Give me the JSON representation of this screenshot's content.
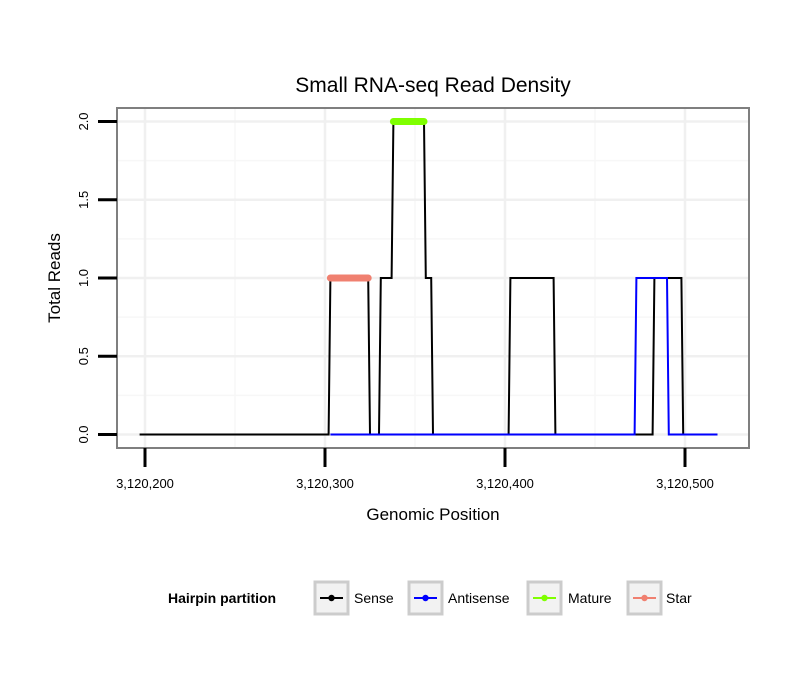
{
  "chart_data": {
    "type": "line",
    "title": "Small RNA-seq Read Density",
    "xlabel": "Genomic Position",
    "ylabel": "Total Reads",
    "xlim": [
      3120185,
      3120535
    ],
    "ylim": [
      -0.08,
      2.08
    ],
    "x_ticks": [
      3120200,
      3120300,
      3120400,
      3120500
    ],
    "x_tick_labels": [
      "3,120,200",
      "3,120,300",
      "3,120,400",
      "3,120,500"
    ],
    "y_ticks": [
      0,
      0.5,
      1,
      1.5,
      2
    ],
    "y_tick_labels": [
      "0.0",
      "0.5",
      "1.0",
      "1.5",
      "2.0"
    ],
    "grid": true,
    "legend": {
      "title": "Hairpin partition",
      "position": "bottom",
      "entries": [
        {
          "label": "Sense",
          "color": "#000000"
        },
        {
          "label": "Antisense",
          "color": "#0000ff"
        },
        {
          "label": "Mature",
          "color": "#7fff00"
        },
        {
          "label": "Star",
          "color": "#f08070"
        }
      ]
    },
    "series": [
      {
        "name": "Sense",
        "color": "#000000",
        "x": [
          3120197,
          3120302,
          3120303,
          3120324,
          3120325,
          3120330,
          3120331,
          3120337,
          3120338,
          3120355,
          3120356,
          3120359,
          3120360,
          3120402,
          3120403,
          3120427,
          3120428,
          3120482,
          3120483,
          3120498,
          3120499,
          3120518
        ],
        "y": [
          0,
          0,
          1,
          1,
          0,
          0,
          1,
          1,
          2,
          2,
          1,
          1,
          0,
          0,
          1,
          1,
          0,
          0,
          1,
          1,
          0,
          0
        ]
      },
      {
        "name": "Antisense",
        "color": "#0000ff",
        "x": [
          3120303,
          3120472,
          3120473,
          3120490,
          3120491,
          3120518
        ],
        "y": [
          0,
          0,
          1,
          1,
          0,
          0
        ]
      },
      {
        "name": "Mature",
        "color": "#7fff00",
        "x": [
          3120338,
          3120355
        ],
        "y": [
          2,
          2
        ]
      },
      {
        "name": "Star",
        "color": "#f08070",
        "x": [
          3120303,
          3120324
        ],
        "y": [
          1,
          1
        ]
      }
    ]
  }
}
